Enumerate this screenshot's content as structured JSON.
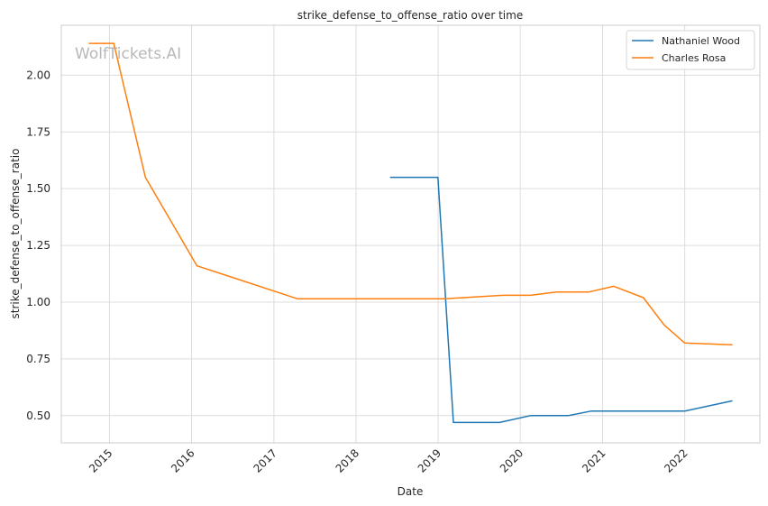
{
  "chart_data": {
    "type": "line",
    "title": "strike_defense_to_offense_ratio over time",
    "xlabel": "Date",
    "ylabel": "strike_defense_to_offense_ratio",
    "xlim": [
      "2014-06-01",
      "2022-12-01"
    ],
    "ylim": [
      0.38,
      2.22
    ],
    "x_ticks": [
      "2015",
      "2016",
      "2017",
      "2018",
      "2019",
      "2020",
      "2021",
      "2022"
    ],
    "y_ticks": [
      "0.50",
      "0.75",
      "1.00",
      "1.25",
      "1.50",
      "1.75",
      "2.00"
    ],
    "y_tick_values": [
      0.5,
      0.75,
      1.0,
      1.25,
      1.5,
      1.75,
      2.0
    ],
    "grid": true,
    "legend_position": "top-right",
    "watermark": "WolfTickets.AI",
    "colors": {
      "Nathaniel Wood": "#1f77b4",
      "Charles Rosa": "#ff7f0e"
    },
    "series": [
      {
        "name": "Nathaniel Wood",
        "x": [
          "2018-06-01",
          "2018-12-31",
          "2019-03-10",
          "2019-10-01",
          "2020-02-15",
          "2020-08-01",
          "2020-11-10",
          "2021-05-10",
          "2022-01-01",
          "2022-08-01"
        ],
        "y": [
          1.55,
          1.55,
          0.47,
          0.47,
          0.5,
          0.5,
          0.52,
          0.52,
          0.52,
          0.565
        ]
      },
      {
        "name": "Charles Rosa",
        "x": [
          "2014-10-01",
          "2015-01-20",
          "2015-06-10",
          "2016-01-25",
          "2017-04-15",
          "2018-06-01",
          "2019-02-01",
          "2019-10-15",
          "2020-02-15",
          "2020-06-10",
          "2020-11-01",
          "2021-02-20",
          "2021-07-01",
          "2021-10-01",
          "2022-01-01",
          "2022-08-01"
        ],
        "y": [
          2.14,
          2.14,
          1.55,
          1.16,
          1.015,
          1.015,
          1.015,
          1.03,
          1.03,
          1.045,
          1.045,
          1.07,
          1.02,
          0.9,
          0.82,
          0.812
        ]
      }
    ]
  }
}
